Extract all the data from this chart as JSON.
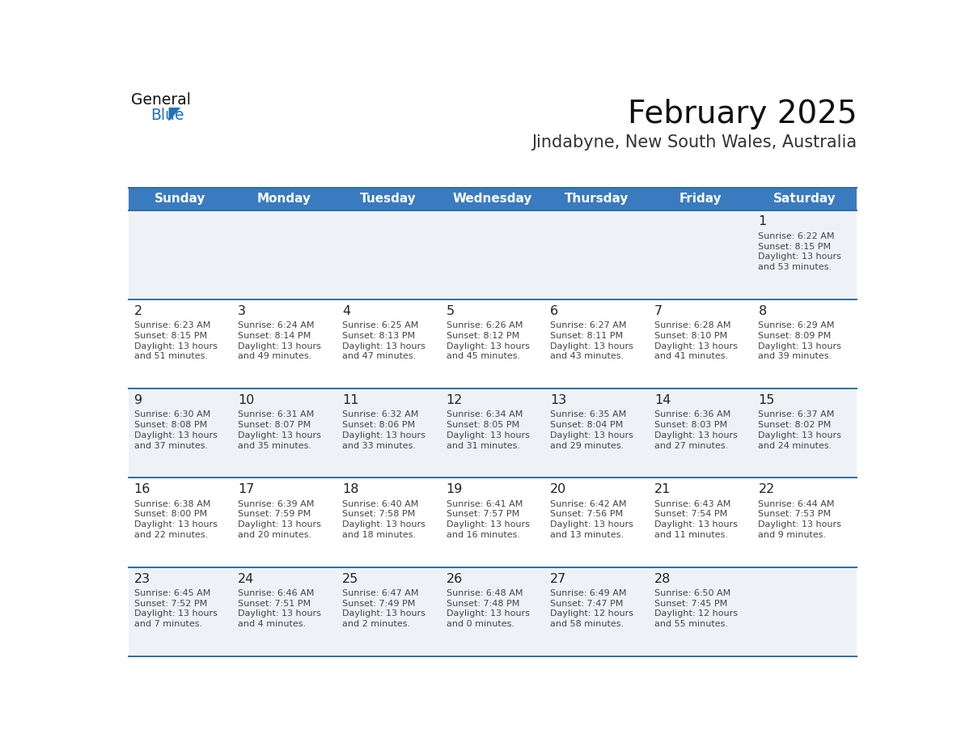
{
  "title": "February 2025",
  "subtitle": "Jindabyne, New South Wales, Australia",
  "header_bg": "#3a7bbf",
  "header_text": "#ffffff",
  "day_names": [
    "Sunday",
    "Monday",
    "Tuesday",
    "Wednesday",
    "Thursday",
    "Friday",
    "Saturday"
  ],
  "cell_bg_odd": "#eef2f7",
  "cell_bg_even": "#ffffff",
  "separator_color": "#2e6da4",
  "day_num_color": "#222222",
  "info_color": "#444444",
  "title_color": "#111111",
  "subtitle_color": "#333333",
  "logo_general_color": "#111111",
  "logo_blue_color": "#2372b8",
  "calendar": [
    [
      null,
      null,
      null,
      null,
      null,
      null,
      {
        "day": 1,
        "sunrise": "6:22 AM",
        "sunset": "8:15 PM",
        "daylight": "13 hours and 53 minutes"
      }
    ],
    [
      {
        "day": 2,
        "sunrise": "6:23 AM",
        "sunset": "8:15 PM",
        "daylight": "13 hours and 51 minutes"
      },
      {
        "day": 3,
        "sunrise": "6:24 AM",
        "sunset": "8:14 PM",
        "daylight": "13 hours and 49 minutes"
      },
      {
        "day": 4,
        "sunrise": "6:25 AM",
        "sunset": "8:13 PM",
        "daylight": "13 hours and 47 minutes"
      },
      {
        "day": 5,
        "sunrise": "6:26 AM",
        "sunset": "8:12 PM",
        "daylight": "13 hours and 45 minutes"
      },
      {
        "day": 6,
        "sunrise": "6:27 AM",
        "sunset": "8:11 PM",
        "daylight": "13 hours and 43 minutes"
      },
      {
        "day": 7,
        "sunrise": "6:28 AM",
        "sunset": "8:10 PM",
        "daylight": "13 hours and 41 minutes"
      },
      {
        "day": 8,
        "sunrise": "6:29 AM",
        "sunset": "8:09 PM",
        "daylight": "13 hours and 39 minutes"
      }
    ],
    [
      {
        "day": 9,
        "sunrise": "6:30 AM",
        "sunset": "8:08 PM",
        "daylight": "13 hours and 37 minutes"
      },
      {
        "day": 10,
        "sunrise": "6:31 AM",
        "sunset": "8:07 PM",
        "daylight": "13 hours and 35 minutes"
      },
      {
        "day": 11,
        "sunrise": "6:32 AM",
        "sunset": "8:06 PM",
        "daylight": "13 hours and 33 minutes"
      },
      {
        "day": 12,
        "sunrise": "6:34 AM",
        "sunset": "8:05 PM",
        "daylight": "13 hours and 31 minutes"
      },
      {
        "day": 13,
        "sunrise": "6:35 AM",
        "sunset": "8:04 PM",
        "daylight": "13 hours and 29 minutes"
      },
      {
        "day": 14,
        "sunrise": "6:36 AM",
        "sunset": "8:03 PM",
        "daylight": "13 hours and 27 minutes"
      },
      {
        "day": 15,
        "sunrise": "6:37 AM",
        "sunset": "8:02 PM",
        "daylight": "13 hours and 24 minutes"
      }
    ],
    [
      {
        "day": 16,
        "sunrise": "6:38 AM",
        "sunset": "8:00 PM",
        "daylight": "13 hours and 22 minutes"
      },
      {
        "day": 17,
        "sunrise": "6:39 AM",
        "sunset": "7:59 PM",
        "daylight": "13 hours and 20 minutes"
      },
      {
        "day": 18,
        "sunrise": "6:40 AM",
        "sunset": "7:58 PM",
        "daylight": "13 hours and 18 minutes"
      },
      {
        "day": 19,
        "sunrise": "6:41 AM",
        "sunset": "7:57 PM",
        "daylight": "13 hours and 16 minutes"
      },
      {
        "day": 20,
        "sunrise": "6:42 AM",
        "sunset": "7:56 PM",
        "daylight": "13 hours and 13 minutes"
      },
      {
        "day": 21,
        "sunrise": "6:43 AM",
        "sunset": "7:54 PM",
        "daylight": "13 hours and 11 minutes"
      },
      {
        "day": 22,
        "sunrise": "6:44 AM",
        "sunset": "7:53 PM",
        "daylight": "13 hours and 9 minutes"
      }
    ],
    [
      {
        "day": 23,
        "sunrise": "6:45 AM",
        "sunset": "7:52 PM",
        "daylight": "13 hours and 7 minutes"
      },
      {
        "day": 24,
        "sunrise": "6:46 AM",
        "sunset": "7:51 PM",
        "daylight": "13 hours and 4 minutes"
      },
      {
        "day": 25,
        "sunrise": "6:47 AM",
        "sunset": "7:49 PM",
        "daylight": "13 hours and 2 minutes"
      },
      {
        "day": 26,
        "sunrise": "6:48 AM",
        "sunset": "7:48 PM",
        "daylight": "13 hours and 0 minutes"
      },
      {
        "day": 27,
        "sunrise": "6:49 AM",
        "sunset": "7:47 PM",
        "daylight": "12 hours and 58 minutes"
      },
      {
        "day": 28,
        "sunrise": "6:50 AM",
        "sunset": "7:45 PM",
        "daylight": "12 hours and 55 minutes"
      },
      null
    ]
  ],
  "num_weeks": 5
}
